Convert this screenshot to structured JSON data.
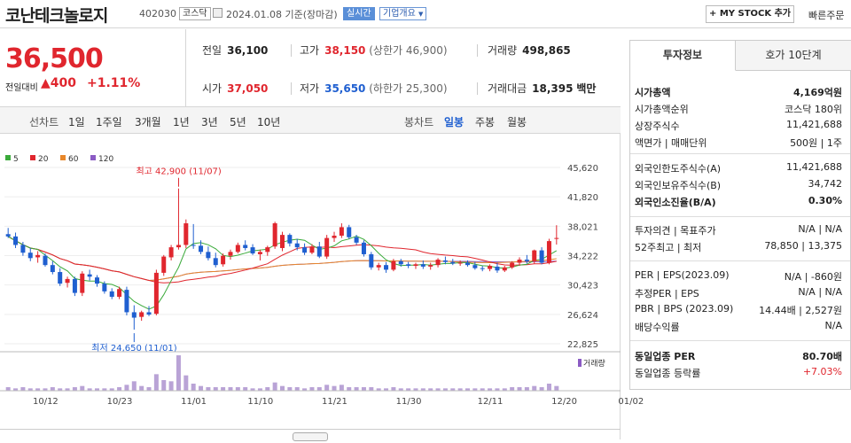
{
  "header": {
    "name": "코난테크놀로지",
    "code": "402030",
    "market_tag": "코스닥",
    "date": "2024.01.08 기준(장마감)",
    "realtime_tag": "실시간",
    "overview_tag": "기업개요",
    "my_stock": "+ MY STOCK 추가",
    "quick_order": "빠른주문"
  },
  "price": {
    "current": "36,500",
    "change_label": "전일대비",
    "change": "▲400",
    "change_pct": "+1.11%"
  },
  "quotes": {
    "prev_label": "전일",
    "prev": "36,100",
    "high_label": "고가",
    "high": "38,150",
    "upper_limit": "(상한가 46,900)",
    "vol_label": "거래량",
    "vol": "498,865",
    "open_label": "시가",
    "open": "37,050",
    "low_label": "저가",
    "low": "35,650",
    "lower_limit": "(하한가 25,300)",
    "amt_label": "거래대금",
    "amt": "18,395",
    "amt_unit": "백만"
  },
  "tabs": {
    "line_label": "선차트",
    "periods": [
      "1일",
      "1주일",
      "3개월",
      "1년",
      "3년",
      "5년",
      "10년"
    ],
    "candle_label": "봉차트",
    "candle": [
      "일봉",
      "주봉",
      "월봉"
    ]
  },
  "chart_data": {
    "type": "candlestick",
    "ma_legend": [
      {
        "name": "5",
        "color": "#3aaa3a"
      },
      {
        "name": "20",
        "color": "#e0262e"
      },
      {
        "name": "60",
        "color": "#e8872a"
      },
      {
        "name": "120",
        "color": "#8b5bc4"
      }
    ],
    "y_ticks": [
      "45,620",
      "41,820",
      "38,021",
      "34,222",
      "30,423",
      "26,624",
      "22,825"
    ],
    "x_ticks": [
      "10/12",
      "10/23",
      "11/01",
      "11/10",
      "11/21",
      "11/30",
      "12/11",
      "12/20",
      "01/02"
    ],
    "high_annot": "최고 42,900 (11/07)",
    "low_annot": "최저 24,650 (11/01)",
    "volume_label": "거래량",
    "candles": [
      [
        37000,
        37800,
        36500,
        36700
      ],
      [
        36700,
        37200,
        35200,
        35600
      ],
      [
        35600,
        36000,
        34200,
        34600
      ],
      [
        34600,
        35200,
        33500,
        33900
      ],
      [
        34000,
        34800,
        33300,
        34300
      ],
      [
        34200,
        34500,
        32800,
        33000
      ],
      [
        33000,
        33500,
        31800,
        32100
      ],
      [
        32100,
        32600,
        30300,
        30600
      ],
      [
        30700,
        31500,
        30100,
        31200
      ],
      [
        31200,
        31500,
        29000,
        29400
      ],
      [
        29400,
        32200,
        29000,
        31900
      ],
      [
        31800,
        32400,
        31000,
        31500
      ],
      [
        31400,
        31700,
        30200,
        30600
      ],
      [
        30600,
        30900,
        29300,
        29600
      ],
      [
        29600,
        30000,
        28600,
        28900
      ],
      [
        28900,
        30200,
        28600,
        29900
      ],
      [
        29800,
        30200,
        26500,
        26900
      ],
      [
        26900,
        27800,
        24650,
        26200
      ],
      [
        26300,
        27100,
        25800,
        26900
      ],
      [
        26900,
        27700,
        26400,
        26600
      ],
      [
        26700,
        32400,
        26500,
        32000
      ],
      [
        32000,
        34300,
        31600,
        34100
      ],
      [
        34000,
        35600,
        33600,
        35300
      ],
      [
        35300,
        42900,
        35000,
        35600
      ],
      [
        35600,
        38900,
        35200,
        38400
      ],
      [
        35600,
        38300,
        35100,
        35500
      ],
      [
        35500,
        36200,
        34400,
        34700
      ],
      [
        34700,
        35400,
        33600,
        33900
      ],
      [
        33900,
        34600,
        32700,
        33000
      ],
      [
        33100,
        34500,
        32800,
        34200
      ],
      [
        34200,
        35000,
        33700,
        34700
      ],
      [
        34700,
        35900,
        34500,
        35600
      ],
      [
        35600,
        36200,
        34900,
        35200
      ],
      [
        35300,
        35700,
        34300,
        34500
      ],
      [
        34400,
        35000,
        33600,
        34700
      ],
      [
        34700,
        35500,
        34200,
        35300
      ],
      [
        35400,
        38600,
        35100,
        38400
      ],
      [
        35200,
        37300,
        34800,
        36900
      ],
      [
        36900,
        37100,
        35400,
        35800
      ],
      [
        35800,
        36400,
        34900,
        35300
      ],
      [
        35300,
        35800,
        34300,
        34600
      ],
      [
        34600,
        35700,
        34400,
        35400
      ],
      [
        35400,
        36000,
        33900,
        34100
      ],
      [
        34100,
        36900,
        33800,
        36500
      ],
      [
        36500,
        37300,
        36000,
        36800
      ],
      [
        36800,
        38400,
        36500,
        37900
      ],
      [
        37900,
        38200,
        36400,
        36600
      ],
      [
        36600,
        36900,
        35600,
        35900
      ],
      [
        35900,
        36200,
        34100,
        34400
      ],
      [
        34400,
        34700,
        32400,
        32700
      ],
      [
        32700,
        33300,
        32300,
        33000
      ],
      [
        33000,
        33400,
        32000,
        32400
      ],
      [
        32400,
        33800,
        32200,
        33500
      ],
      [
        33500,
        33800,
        32800,
        33100
      ],
      [
        33100,
        33400,
        32600,
        32900
      ],
      [
        32900,
        33300,
        32500,
        33100
      ],
      [
        33100,
        33600,
        32500,
        32800
      ],
      [
        32800,
        33300,
        32400,
        33000
      ],
      [
        33000,
        33900,
        32700,
        33700
      ],
      [
        33600,
        34100,
        33100,
        33400
      ],
      [
        33400,
        33800,
        33000,
        33200
      ],
      [
        33200,
        33600,
        32900,
        33300
      ],
      [
        33300,
        33600,
        32800,
        33000
      ],
      [
        33000,
        33400,
        32400,
        32600
      ],
      [
        32600,
        32900,
        32200,
        32500
      ],
      [
        32500,
        33100,
        32200,
        32900
      ],
      [
        32800,
        33300,
        32000,
        32300
      ],
      [
        32300,
        32900,
        32100,
        32700
      ],
      [
        32700,
        33500,
        32500,
        33300
      ],
      [
        33300,
        34000,
        32900,
        33700
      ],
      [
        33700,
        34300,
        33200,
        33500
      ],
      [
        33500,
        35000,
        33200,
        34900
      ],
      [
        34900,
        35300,
        33100,
        33300
      ],
      [
        33300,
        36400,
        33100,
        36100
      ],
      [
        36500,
        38150,
        35650,
        36500
      ]
    ],
    "volume": [
      3,
      2,
      3,
      2,
      2,
      2,
      3,
      2,
      2,
      3,
      4,
      2,
      2,
      2,
      2,
      3,
      5,
      8,
      4,
      3,
      14,
      9,
      8,
      30,
      13,
      6,
      4,
      3,
      3,
      3,
      3,
      3,
      3,
      2,
      2,
      3,
      7,
      4,
      3,
      3,
      2,
      3,
      3,
      5,
      4,
      5,
      3,
      3,
      3,
      3,
      2,
      2,
      3,
      2,
      2,
      2,
      2,
      2,
      2,
      2,
      2,
      2,
      2,
      2,
      2,
      2,
      2,
      2,
      3,
      3,
      3,
      4,
      3,
      6,
      4
    ]
  },
  "panel": {
    "tabs": [
      "투자정보",
      "호가 10단계"
    ],
    "rows1": [
      {
        "k": "시가총액",
        "v": "4,169억원",
        "b": true
      },
      {
        "k": "시가총액순위",
        "v": "코스닥 180위"
      },
      {
        "k": "상장주식수",
        "v": "11,421,688"
      },
      {
        "k": "액면가 | 매매단위",
        "v": "500원 | 1주"
      }
    ],
    "rows2": [
      {
        "k": "외국인한도주식수(A)",
        "v": "11,421,688"
      },
      {
        "k": "외국인보유주식수(B)",
        "v": "34,742"
      },
      {
        "k": "외국인소진율(B/A)",
        "v": "0.30%",
        "b": true
      }
    ],
    "rows3": [
      {
        "k": "투자의견 | 목표주가",
        "v": "N/A | N/A"
      },
      {
        "k": "52주최고 | 최저",
        "v": "78,850 | 13,375"
      }
    ],
    "rows4": [
      {
        "k": "PER | EPS(2023.09)",
        "v": "N/A | -860원"
      },
      {
        "k": "추정PER | EPS",
        "v": "N/A | N/A"
      },
      {
        "k": "PBR | BPS (2023.09)",
        "v": "14.44배 | 2,527원"
      },
      {
        "k": "배당수익률",
        "v": "N/A"
      }
    ],
    "rows5": [
      {
        "k": "동일업종 PER",
        "v": "80.70배",
        "b": true
      },
      {
        "k": "동일업종 등락률",
        "v": "+7.03%",
        "red": true
      }
    ]
  }
}
